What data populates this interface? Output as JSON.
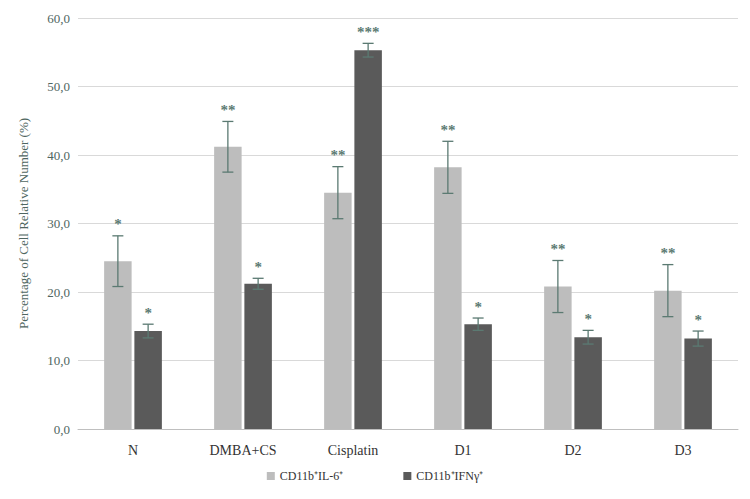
{
  "chart_data": {
    "type": "bar",
    "y_label": "Percentage of Cell Relative Number (%)",
    "categories": [
      "N",
      "DMBA+CS",
      "Cisplatin",
      "D1",
      "D2",
      "D3"
    ],
    "series": [
      {
        "name": "CD11b⁺IL-6⁺",
        "color": "#bdbdbd",
        "values": [
          24.5,
          41.2,
          34.5,
          38.2,
          20.8,
          20.2
        ],
        "errors": [
          3.7,
          3.7,
          3.8,
          3.8,
          3.8,
          3.8
        ],
        "significance": [
          "*",
          "**",
          "**",
          "**",
          "**",
          "**"
        ]
      },
      {
        "name": "CD11b⁺IFNγ⁺",
        "color": "#5a5a5a",
        "values": [
          14.3,
          21.2,
          55.3,
          15.3,
          13.4,
          13.2
        ],
        "errors": [
          1.0,
          0.8,
          1.0,
          0.9,
          1.0,
          1.1
        ],
        "significance": [
          "*",
          "*",
          "***",
          "*",
          "*",
          "*"
        ]
      }
    ],
    "ylim": [
      0,
      60
    ],
    "yticks": [
      {
        "value": 0,
        "label": "0,0"
      },
      {
        "value": 10,
        "label": "10,0"
      },
      {
        "value": 20,
        "label": "20,0"
      },
      {
        "value": 30,
        "label": "30,0"
      },
      {
        "value": 40,
        "label": "40,0"
      },
      {
        "value": 50,
        "label": "50,0"
      },
      {
        "value": 60,
        "label": "60,0"
      }
    ],
    "grid": true,
    "legend": "bottom"
  }
}
